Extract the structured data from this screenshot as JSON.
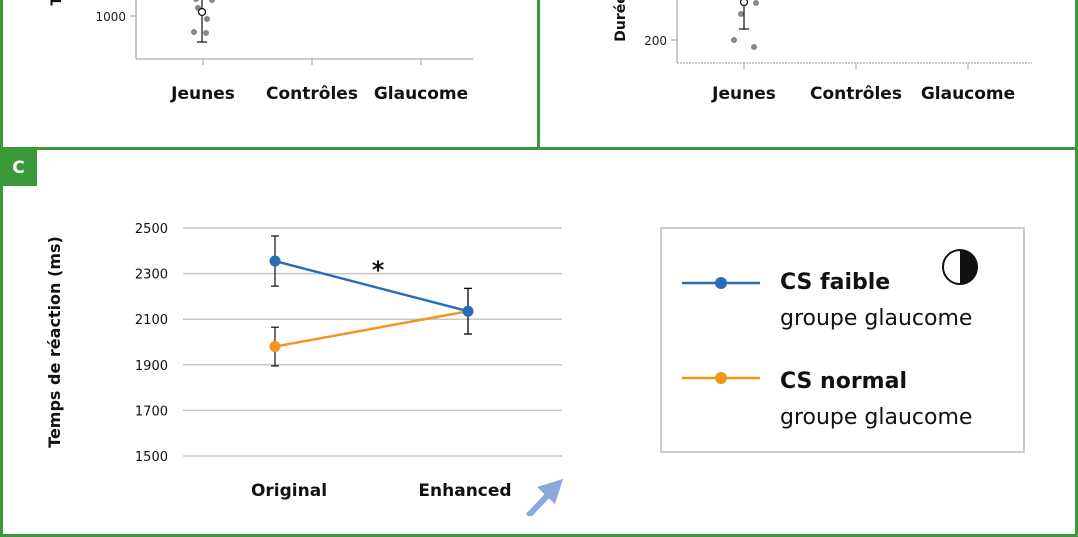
{
  "panels": {
    "a": {
      "ylabel_fragment": "To",
      "ytick": "1000",
      "categories": [
        "Jeunes",
        "Contrôles",
        "Glaucome"
      ]
    },
    "b": {
      "ylabel_fragment": "Durée",
      "ytick": "200",
      "categories": [
        "Jeunes",
        "Contrôles",
        "Glaucome"
      ]
    },
    "c": {
      "label": "C",
      "significance": "*"
    }
  },
  "legend": {
    "items": [
      {
        "title": "CS faible",
        "subtitle": "groupe glaucome",
        "color": "#2a6db5"
      },
      {
        "title": "CS normal",
        "subtitle": "groupe glaucome",
        "color": "#f0961e"
      }
    ],
    "icon": "half-filled-circle-icon"
  },
  "chart_data": {
    "type": "line",
    "categories": [
      "Original",
      "Enhanced"
    ],
    "ylabel": "Temps de réaction (ms)",
    "ylim": [
      1500,
      2500
    ],
    "yticks": [
      1500,
      1700,
      1900,
      2100,
      2300,
      2500
    ],
    "grid": true,
    "legend_position": "right",
    "series": [
      {
        "name": "CS faible groupe glaucome",
        "values": [
          2355,
          2135
        ],
        "errors": [
          110,
          100
        ],
        "color": "#2a6db5"
      },
      {
        "name": "CS normal groupe glaucome",
        "values": [
          1980,
          2135
        ],
        "errors": [
          85,
          100
        ],
        "color": "#f0961e"
      }
    ]
  }
}
